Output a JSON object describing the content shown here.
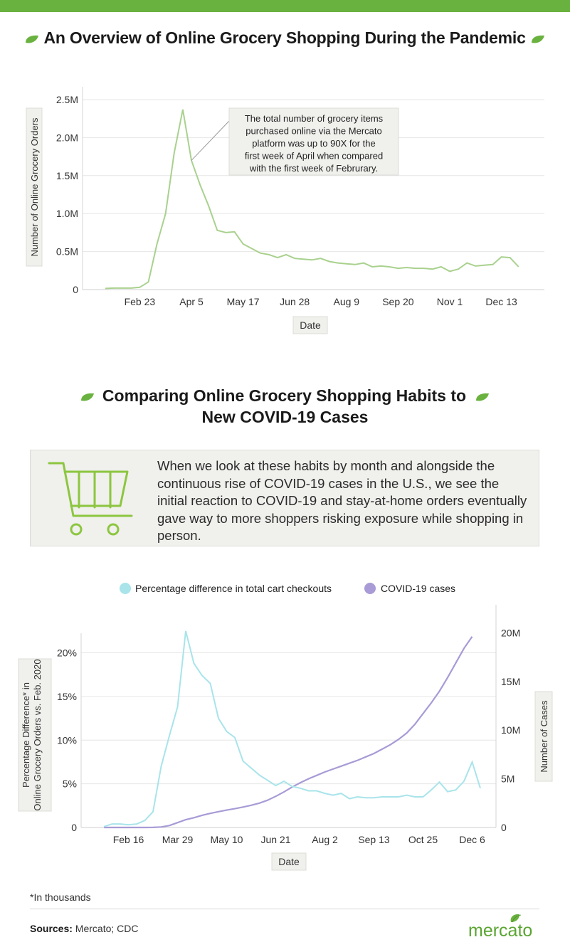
{
  "header": {
    "title": "An Overview of Online Grocery Shopping During the Pandemic"
  },
  "section2": {
    "title_line1": "Comparing Online Grocery Shopping Habits to",
    "title_line2": "New COVID-19 Cases",
    "info_text": "When we look at these habits by month and alongside the continuous rise of COVID-19 cases in the U.S., we see the initial reaction to COVID-19 and stay-at-home orders eventually gave way to more shoppers risking exposure while shopping in person."
  },
  "footer": {
    "footnote": "*In thousands",
    "sources_label": "Sources:",
    "sources_text": " Mercato; CDC",
    "logo_text": "mercato"
  },
  "colors": {
    "brand_green": "#6ab23f",
    "line1": "#a9d18e",
    "checkouts": "#a8e4ea",
    "covid": "#a89bd6"
  },
  "icons": [
    "leaf-icon",
    "shopping-cart-icon",
    "mercato-leaf-icon"
  ],
  "chart_data": [
    {
      "type": "line",
      "xlabel": "Date",
      "ylabel": "Number of Online Grocery Orders",
      "ylim": [
        0,
        2500000
      ],
      "y_ticks": [
        {
          "value": 0,
          "label": "0"
        },
        {
          "value": 500000,
          "label": "0.5M"
        },
        {
          "value": 1000000,
          "label": "1.0M"
        },
        {
          "value": 1500000,
          "label": "1.5M"
        },
        {
          "value": 2000000,
          "label": "2.0M"
        },
        {
          "value": 2500000,
          "label": "2.5M"
        }
      ],
      "x_tick_labels": [
        "Feb 23",
        "Apr 5",
        "May 17",
        "Jun 28",
        "Aug 9",
        "Sep 20",
        "Nov 1",
        "Dec 13"
      ],
      "x_tick_index": [
        4,
        10,
        16,
        22,
        28,
        34,
        40,
        46
      ],
      "grid": true,
      "annotation": {
        "text": "The total number of grocery items purchased online via the Mercato platform was up to 90X for the first week of April when compared with the first week of Februrary.",
        "point_index": 10
      },
      "series": [
        {
          "values": [
            15000,
            20000,
            20000,
            20000,
            30000,
            100000,
            600000,
            1000000,
            1800000,
            2370000,
            1700000,
            1380000,
            1100000,
            780000,
            750000,
            760000,
            600000,
            540000,
            480000,
            460000,
            420000,
            460000,
            410000,
            400000,
            390000,
            410000,
            370000,
            350000,
            340000,
            330000,
            350000,
            300000,
            310000,
            300000,
            280000,
            290000,
            280000,
            280000,
            270000,
            300000,
            240000,
            270000,
            350000,
            310000,
            320000,
            330000,
            430000,
            420000,
            300000
          ]
        }
      ]
    },
    {
      "type": "line",
      "xlabel": "Date",
      "ylabel_left": "Percentage Difference* in Online Grocery Orders vs. Feb. 2020",
      "ylabel_right": "Number of Cases",
      "ylim_left": [
        0,
        22
      ],
      "ylim_right": [
        0,
        22000000
      ],
      "y_ticks_left": [
        {
          "value": 0,
          "label": "0"
        },
        {
          "value": 5,
          "label": "5%"
        },
        {
          "value": 10,
          "label": "10%"
        },
        {
          "value": 15,
          "label": "15%"
        },
        {
          "value": 20,
          "label": "20%"
        }
      ],
      "y_ticks_right": [
        {
          "value": 0,
          "label": "0"
        },
        {
          "value": 5000000,
          "label": "5M"
        },
        {
          "value": 10000000,
          "label": "10M"
        },
        {
          "value": 15000000,
          "label": "15M"
        },
        {
          "value": 20000000,
          "label": "20M"
        }
      ],
      "x_tick_labels": [
        "Feb 16",
        "Mar 29",
        "May 10",
        "Jun 21",
        "Aug 2",
        "Sep 13",
        "Oct 25",
        "Dec 6"
      ],
      "x_tick_index": [
        3,
        9,
        15,
        21,
        27,
        33,
        39,
        45
      ],
      "grid": true,
      "legend_position": "top",
      "series": [
        {
          "name": "Percentage difference in total cart checkouts",
          "axis": "left",
          "values": [
            0.1,
            0.4,
            0.4,
            0.3,
            0.4,
            0.8,
            1.8,
            7.0,
            10.5,
            13.8,
            22.5,
            18.8,
            17.4,
            16.5,
            12.5,
            11.0,
            10.3,
            7.6,
            6.8,
            6.0,
            5.4,
            4.8,
            5.3,
            4.7,
            4.5,
            4.2,
            4.2,
            3.9,
            3.7,
            3.9,
            3.3,
            3.5,
            3.4,
            3.4,
            3.5,
            3.5,
            3.5,
            3.7,
            3.5,
            3.5,
            4.3,
            5.2,
            4.1,
            4.3,
            5.3,
            7.5,
            4.5
          ]
        },
        {
          "name": "COVID-19 cases",
          "axis": "right",
          "values": [
            0,
            0,
            0,
            0,
            0,
            0,
            5000,
            50000,
            200000,
            500000,
            800000,
            1000000,
            1250000,
            1450000,
            1620000,
            1780000,
            1930000,
            2100000,
            2280000,
            2500000,
            2800000,
            3200000,
            3650000,
            4150000,
            4600000,
            5000000,
            5350000,
            5700000,
            6000000,
            6300000,
            6600000,
            6900000,
            7250000,
            7600000,
            8050000,
            8500000,
            9050000,
            9700000,
            10600000,
            11700000,
            12800000,
            14000000,
            15400000,
            16900000,
            18400000,
            19600000
          ]
        }
      ]
    }
  ]
}
